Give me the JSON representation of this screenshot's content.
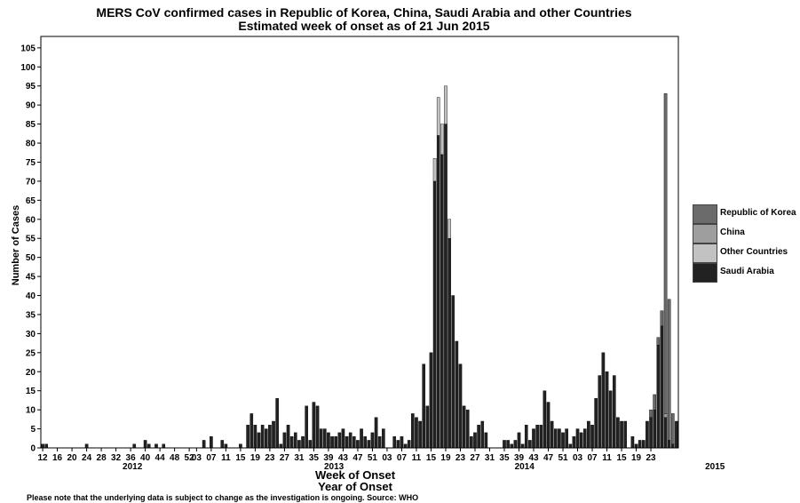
{
  "chart_data": {
    "type": "bar",
    "title": "MERS CoV confirmed cases in Republic of Korea, China, Saudi Arabia and other Countries",
    "subtitle": "Estimated week of onset as of 21 Jun 2015",
    "xlabel": "Week of Onset",
    "xlabel2": "Year of Onset",
    "ylabel": "Number of Cases",
    "ylim": [
      0,
      108
    ],
    "yticks": [
      0,
      5,
      10,
      15,
      20,
      25,
      30,
      35,
      40,
      45,
      50,
      55,
      60,
      65,
      70,
      75,
      80,
      85,
      90,
      95,
      100,
      105
    ],
    "stacked": true,
    "legend_position": "right",
    "x_tick_labels": [
      "12",
      "16",
      "20",
      "24",
      "28",
      "32",
      "36",
      "40",
      "44",
      "48",
      "52",
      "03",
      "07",
      "11",
      "15",
      "19",
      "23",
      "27",
      "31",
      "35",
      "39",
      "43",
      "47",
      "51",
      "03",
      "07",
      "11",
      "15",
      "19",
      "23",
      "27",
      "31",
      "35",
      "39",
      "43",
      "47",
      "51",
      "03",
      "07",
      "11",
      "15",
      "19",
      "23"
    ],
    "year_labels": [
      {
        "label": "2012",
        "x_index": 25
      },
      {
        "label": "2013",
        "x_index": 80
      },
      {
        "label": "2014",
        "x_index": 132
      },
      {
        "label": "2015",
        "x_index": 184
      }
    ],
    "weeks_per_year": {
      "2012": 40,
      "2013": 52,
      "2014": 52,
      "2015": 25
    },
    "series": [
      {
        "name": "Saudi Arabia",
        "color": "#222222",
        "values": [
          1,
          1,
          0,
          0,
          0,
          0,
          0,
          0,
          0,
          0,
          0,
          0,
          1,
          0,
          0,
          0,
          0,
          0,
          0,
          0,
          0,
          0,
          0,
          0,
          0,
          1,
          0,
          0,
          2,
          1,
          0,
          1,
          0,
          1,
          0,
          0,
          0,
          0,
          0,
          0,
          0,
          0,
          0,
          0,
          2,
          0,
          3,
          0,
          0,
          2,
          1,
          0,
          0,
          0,
          1,
          0,
          6,
          9,
          6,
          4,
          6,
          5,
          6,
          7,
          13,
          1,
          4,
          6,
          3,
          4,
          2,
          3,
          11,
          2,
          12,
          11,
          5,
          5,
          4,
          3,
          3,
          4,
          5,
          3,
          4,
          3,
          2,
          5,
          3,
          2,
          4,
          8,
          3,
          5,
          0,
          0,
          3,
          2,
          3,
          1,
          2,
          9,
          8,
          7,
          22,
          11,
          25,
          70,
          82,
          77,
          85,
          55,
          40,
          28,
          22,
          11,
          10,
          3,
          4,
          6,
          7,
          4,
          0,
          0,
          0,
          0,
          2,
          2,
          1,
          2,
          4,
          1,
          6,
          2,
          5,
          6,
          6,
          15,
          12,
          7,
          5,
          5,
          4,
          5,
          1,
          3,
          5,
          4,
          5,
          7,
          6,
          13,
          19,
          25,
          20,
          15,
          19,
          8,
          7,
          7,
          0,
          3,
          1,
          2,
          2,
          7,
          8,
          10,
          27,
          32,
          8,
          2,
          1,
          7
        ]
      },
      {
        "name": "Other Countries",
        "color": "#c2c2c2",
        "values": [
          0,
          0,
          0,
          0,
          0,
          0,
          0,
          0,
          0,
          0,
          0,
          0,
          0,
          0,
          0,
          0,
          0,
          0,
          0,
          0,
          0,
          0,
          0,
          0,
          0,
          0,
          0,
          0,
          0,
          0,
          0,
          0,
          0,
          0,
          0,
          0,
          0,
          0,
          0,
          0,
          0,
          0,
          0,
          0,
          0,
          0,
          0,
          0,
          0,
          0,
          0,
          0,
          0,
          0,
          0,
          0,
          0,
          0,
          0,
          0,
          0,
          0,
          0,
          0,
          0,
          0,
          0,
          0,
          0,
          0,
          0,
          0,
          0,
          0,
          0,
          0,
          0,
          0,
          0,
          0,
          0,
          0,
          0,
          0,
          0,
          0,
          0,
          0,
          0,
          0,
          0,
          0,
          0,
          0,
          0,
          0,
          0,
          0,
          0,
          0,
          0,
          0,
          0,
          0,
          0,
          0,
          0,
          6,
          10,
          8,
          10,
          5,
          0,
          0,
          0,
          0,
          0,
          0,
          0,
          0,
          0,
          0,
          0,
          0,
          0,
          0,
          0,
          0,
          0,
          0,
          0,
          0,
          0,
          0,
          0,
          0,
          0,
          0,
          0,
          0,
          0,
          0,
          0,
          0,
          0,
          0,
          0,
          0,
          0,
          0,
          0,
          0,
          0,
          0,
          0,
          0,
          0,
          0,
          0,
          0,
          0,
          0,
          0,
          0,
          0,
          0,
          0,
          0,
          0,
          0
        ]
      },
      {
        "name": "China",
        "color": "#9e9e9e",
        "values": [
          0,
          0,
          0,
          0,
          0,
          0,
          0,
          0,
          0,
          0,
          0,
          0,
          0,
          0,
          0,
          0,
          0,
          0,
          0,
          0,
          0,
          0,
          0,
          0,
          0,
          0,
          0,
          0,
          0,
          0,
          0,
          0,
          0,
          0,
          0,
          0,
          0,
          0,
          0,
          0,
          0,
          0,
          0,
          0,
          0,
          0,
          0,
          0,
          0,
          0,
          0,
          0,
          0,
          0,
          0,
          0,
          0,
          0,
          0,
          0,
          0,
          0,
          0,
          0,
          0,
          0,
          0,
          0,
          0,
          0,
          0,
          0,
          0,
          0,
          0,
          0,
          0,
          0,
          0,
          0,
          0,
          0,
          0,
          0,
          0,
          0,
          0,
          0,
          0,
          0,
          0,
          0,
          0,
          0,
          0,
          0,
          0,
          0,
          0,
          0,
          0,
          0,
          0,
          0,
          0,
          0,
          0,
          0,
          0,
          0,
          0,
          0,
          0,
          0,
          0,
          0,
          0,
          0,
          0,
          0,
          0,
          0,
          0,
          0,
          0,
          0,
          0,
          0,
          0,
          0,
          0,
          0,
          0,
          0,
          0,
          0,
          0,
          0,
          0,
          0,
          0,
          0,
          0,
          0,
          0,
          0,
          0,
          0,
          0,
          0,
          0,
          0,
          0,
          0,
          0,
          0,
          0,
          0,
          0,
          0,
          0,
          0,
          0,
          0,
          0,
          0,
          0,
          0,
          0,
          0,
          1,
          0,
          0,
          0
        ]
      },
      {
        "name": "Republic of Korea",
        "color": "#6b6b6b",
        "values": [
          0,
          0,
          0,
          0,
          0,
          0,
          0,
          0,
          0,
          0,
          0,
          0,
          0,
          0,
          0,
          0,
          0,
          0,
          0,
          0,
          0,
          0,
          0,
          0,
          0,
          0,
          0,
          0,
          0,
          0,
          0,
          0,
          0,
          0,
          0,
          0,
          0,
          0,
          0,
          0,
          0,
          0,
          0,
          0,
          0,
          0,
          0,
          0,
          0,
          0,
          0,
          0,
          0,
          0,
          0,
          0,
          0,
          0,
          0,
          0,
          0,
          0,
          0,
          0,
          0,
          0,
          0,
          0,
          0,
          0,
          0,
          0,
          0,
          0,
          0,
          0,
          0,
          0,
          0,
          0,
          0,
          0,
          0,
          0,
          0,
          0,
          0,
          0,
          0,
          0,
          0,
          0,
          0,
          0,
          0,
          0,
          0,
          0,
          0,
          0,
          0,
          0,
          0,
          0,
          0,
          0,
          0,
          0,
          0,
          0,
          0,
          0,
          0,
          0,
          0,
          0,
          0,
          0,
          0,
          0,
          0,
          0,
          0,
          0,
          0,
          0,
          0,
          0,
          0,
          0,
          0,
          0,
          0,
          0,
          0,
          0,
          0,
          0,
          0,
          0,
          0,
          0,
          0,
          0,
          0,
          0,
          0,
          0,
          0,
          0,
          0,
          0,
          0,
          0,
          0,
          0,
          0,
          0,
          0,
          0,
          0,
          0,
          0,
          0,
          0,
          0,
          2,
          4,
          2,
          4,
          84,
          37,
          8,
          0
        ]
      }
    ]
  },
  "legend": [
    {
      "label": "Republic of Korea",
      "color": "#6b6b6b"
    },
    {
      "label": "China",
      "color": "#9e9e9e"
    },
    {
      "label": "Other Countries",
      "color": "#c2c2c2"
    },
    {
      "label": "Saudi Arabia",
      "color": "#222222"
    }
  ],
  "note": "Please note that the underlying data is subject to change as the investigation is ongoing. Source: WHO"
}
